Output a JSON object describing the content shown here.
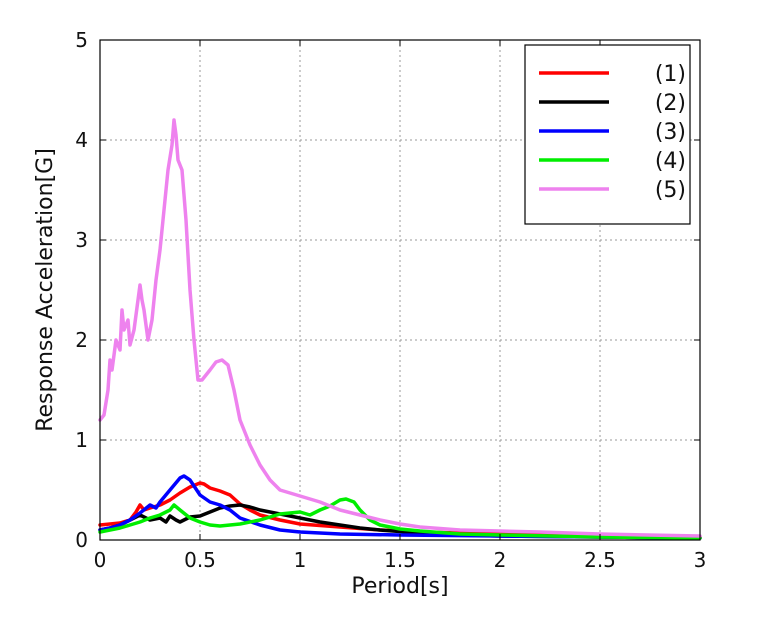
{
  "chart_data": {
    "type": "line",
    "title": "",
    "xlabel": "Period[s]",
    "ylabel": "Response Acceleration[G]",
    "xlim": [
      0,
      3
    ],
    "ylim": [
      0,
      5
    ],
    "x_ticks": [
      0,
      0.5,
      1,
      1.5,
      2,
      2.5,
      3
    ],
    "x_tick_labels": [
      "0",
      "0.5",
      "1",
      "1.5",
      "2",
      "2.5",
      "3"
    ],
    "y_ticks": [
      0,
      1,
      2,
      3,
      4,
      5
    ],
    "y_tick_labels": [
      "0",
      "1",
      "2",
      "3",
      "4",
      "5"
    ],
    "grid": true,
    "legend_position": "top-right",
    "series": [
      {
        "name": "(1)",
        "color": "#ff0000",
        "points": [
          [
            0,
            0.15
          ],
          [
            0.1,
            0.17
          ],
          [
            0.15,
            0.2
          ],
          [
            0.18,
            0.28
          ],
          [
            0.2,
            0.35
          ],
          [
            0.22,
            0.3
          ],
          [
            0.25,
            0.32
          ],
          [
            0.3,
            0.35
          ],
          [
            0.35,
            0.4
          ],
          [
            0.4,
            0.47
          ],
          [
            0.45,
            0.53
          ],
          [
            0.5,
            0.57
          ],
          [
            0.52,
            0.56
          ],
          [
            0.55,
            0.52
          ],
          [
            0.6,
            0.49
          ],
          [
            0.65,
            0.45
          ],
          [
            0.7,
            0.36
          ],
          [
            0.75,
            0.3
          ],
          [
            0.8,
            0.25
          ],
          [
            0.9,
            0.2
          ],
          [
            1.0,
            0.16
          ],
          [
            1.2,
            0.13
          ],
          [
            1.4,
            0.1
          ],
          [
            1.6,
            0.08
          ],
          [
            1.8,
            0.07
          ],
          [
            2.0,
            0.06
          ],
          [
            2.5,
            0.04
          ],
          [
            3.0,
            0.03
          ]
        ]
      },
      {
        "name": "(2)",
        "color": "#000000",
        "points": [
          [
            0,
            0.1
          ],
          [
            0.05,
            0.12
          ],
          [
            0.1,
            0.15
          ],
          [
            0.15,
            0.2
          ],
          [
            0.2,
            0.25
          ],
          [
            0.25,
            0.2
          ],
          [
            0.3,
            0.22
          ],
          [
            0.33,
            0.18
          ],
          [
            0.35,
            0.24
          ],
          [
            0.38,
            0.2
          ],
          [
            0.4,
            0.18
          ],
          [
            0.45,
            0.23
          ],
          [
            0.5,
            0.24
          ],
          [
            0.55,
            0.28
          ],
          [
            0.6,
            0.32
          ],
          [
            0.65,
            0.34
          ],
          [
            0.7,
            0.35
          ],
          [
            0.75,
            0.33
          ],
          [
            0.8,
            0.3
          ],
          [
            0.9,
            0.26
          ],
          [
            1.0,
            0.22
          ],
          [
            1.1,
            0.18
          ],
          [
            1.2,
            0.15
          ],
          [
            1.3,
            0.12
          ],
          [
            1.4,
            0.1
          ],
          [
            1.6,
            0.07
          ],
          [
            1.8,
            0.05
          ],
          [
            2.0,
            0.04
          ],
          [
            2.5,
            0.03
          ],
          [
            3.0,
            0.02
          ]
        ]
      },
      {
        "name": "(3)",
        "color": "#0000ff",
        "points": [
          [
            0,
            0.1
          ],
          [
            0.05,
            0.12
          ],
          [
            0.1,
            0.15
          ],
          [
            0.15,
            0.2
          ],
          [
            0.2,
            0.27
          ],
          [
            0.25,
            0.35
          ],
          [
            0.28,
            0.32
          ],
          [
            0.3,
            0.38
          ],
          [
            0.35,
            0.5
          ],
          [
            0.4,
            0.62
          ],
          [
            0.42,
            0.64
          ],
          [
            0.45,
            0.6
          ],
          [
            0.5,
            0.45
          ],
          [
            0.55,
            0.38
          ],
          [
            0.6,
            0.35
          ],
          [
            0.65,
            0.3
          ],
          [
            0.7,
            0.22
          ],
          [
            0.8,
            0.15
          ],
          [
            0.9,
            0.1
          ],
          [
            1.0,
            0.08
          ],
          [
            1.2,
            0.06
          ],
          [
            1.5,
            0.05
          ],
          [
            2.0,
            0.04
          ],
          [
            2.5,
            0.03
          ],
          [
            3.0,
            0.02
          ]
        ]
      },
      {
        "name": "(4)",
        "color": "#00ee00",
        "points": [
          [
            0,
            0.08
          ],
          [
            0.05,
            0.1
          ],
          [
            0.1,
            0.12
          ],
          [
            0.15,
            0.15
          ],
          [
            0.2,
            0.18
          ],
          [
            0.25,
            0.22
          ],
          [
            0.3,
            0.25
          ],
          [
            0.35,
            0.3
          ],
          [
            0.37,
            0.35
          ],
          [
            0.4,
            0.3
          ],
          [
            0.45,
            0.22
          ],
          [
            0.5,
            0.18
          ],
          [
            0.55,
            0.15
          ],
          [
            0.6,
            0.14
          ],
          [
            0.7,
            0.16
          ],
          [
            0.8,
            0.2
          ],
          [
            0.9,
            0.26
          ],
          [
            1.0,
            0.28
          ],
          [
            1.05,
            0.25
          ],
          [
            1.1,
            0.3
          ],
          [
            1.15,
            0.34
          ],
          [
            1.2,
            0.4
          ],
          [
            1.23,
            0.41
          ],
          [
            1.27,
            0.38
          ],
          [
            1.3,
            0.3
          ],
          [
            1.35,
            0.2
          ],
          [
            1.4,
            0.15
          ],
          [
            1.5,
            0.11
          ],
          [
            1.6,
            0.09
          ],
          [
            1.8,
            0.06
          ],
          [
            2.0,
            0.05
          ],
          [
            2.5,
            0.03
          ],
          [
            3.0,
            0.02
          ]
        ]
      },
      {
        "name": "(5)",
        "color": "#ee82ee",
        "points": [
          [
            0,
            1.2
          ],
          [
            0.02,
            1.25
          ],
          [
            0.04,
            1.5
          ],
          [
            0.05,
            1.8
          ],
          [
            0.06,
            1.7
          ],
          [
            0.08,
            2.0
          ],
          [
            0.1,
            1.9
          ],
          [
            0.11,
            2.3
          ],
          [
            0.12,
            2.1
          ],
          [
            0.14,
            2.2
          ],
          [
            0.15,
            1.95
          ],
          [
            0.17,
            2.1
          ],
          [
            0.19,
            2.4
          ],
          [
            0.2,
            2.55
          ],
          [
            0.21,
            2.4
          ],
          [
            0.22,
            2.3
          ],
          [
            0.24,
            2.0
          ],
          [
            0.26,
            2.2
          ],
          [
            0.28,
            2.6
          ],
          [
            0.3,
            2.9
          ],
          [
            0.32,
            3.3
          ],
          [
            0.34,
            3.7
          ],
          [
            0.36,
            3.95
          ],
          [
            0.37,
            4.2
          ],
          [
            0.38,
            4.05
          ],
          [
            0.39,
            3.8
          ],
          [
            0.41,
            3.7
          ],
          [
            0.43,
            3.2
          ],
          [
            0.45,
            2.5
          ],
          [
            0.47,
            2.0
          ],
          [
            0.49,
            1.6
          ],
          [
            0.51,
            1.6
          ],
          [
            0.53,
            1.65
          ],
          [
            0.55,
            1.7
          ],
          [
            0.58,
            1.78
          ],
          [
            0.61,
            1.8
          ],
          [
            0.64,
            1.75
          ],
          [
            0.67,
            1.5
          ],
          [
            0.7,
            1.2
          ],
          [
            0.75,
            0.95
          ],
          [
            0.8,
            0.75
          ],
          [
            0.85,
            0.6
          ],
          [
            0.9,
            0.5
          ],
          [
            1.0,
            0.44
          ],
          [
            1.1,
            0.38
          ],
          [
            1.2,
            0.3
          ],
          [
            1.3,
            0.25
          ],
          [
            1.4,
            0.2
          ],
          [
            1.5,
            0.16
          ],
          [
            1.6,
            0.13
          ],
          [
            1.8,
            0.1
          ],
          [
            2.0,
            0.09
          ],
          [
            2.2,
            0.08
          ],
          [
            2.5,
            0.06
          ],
          [
            3.0,
            0.04
          ]
        ]
      }
    ]
  }
}
